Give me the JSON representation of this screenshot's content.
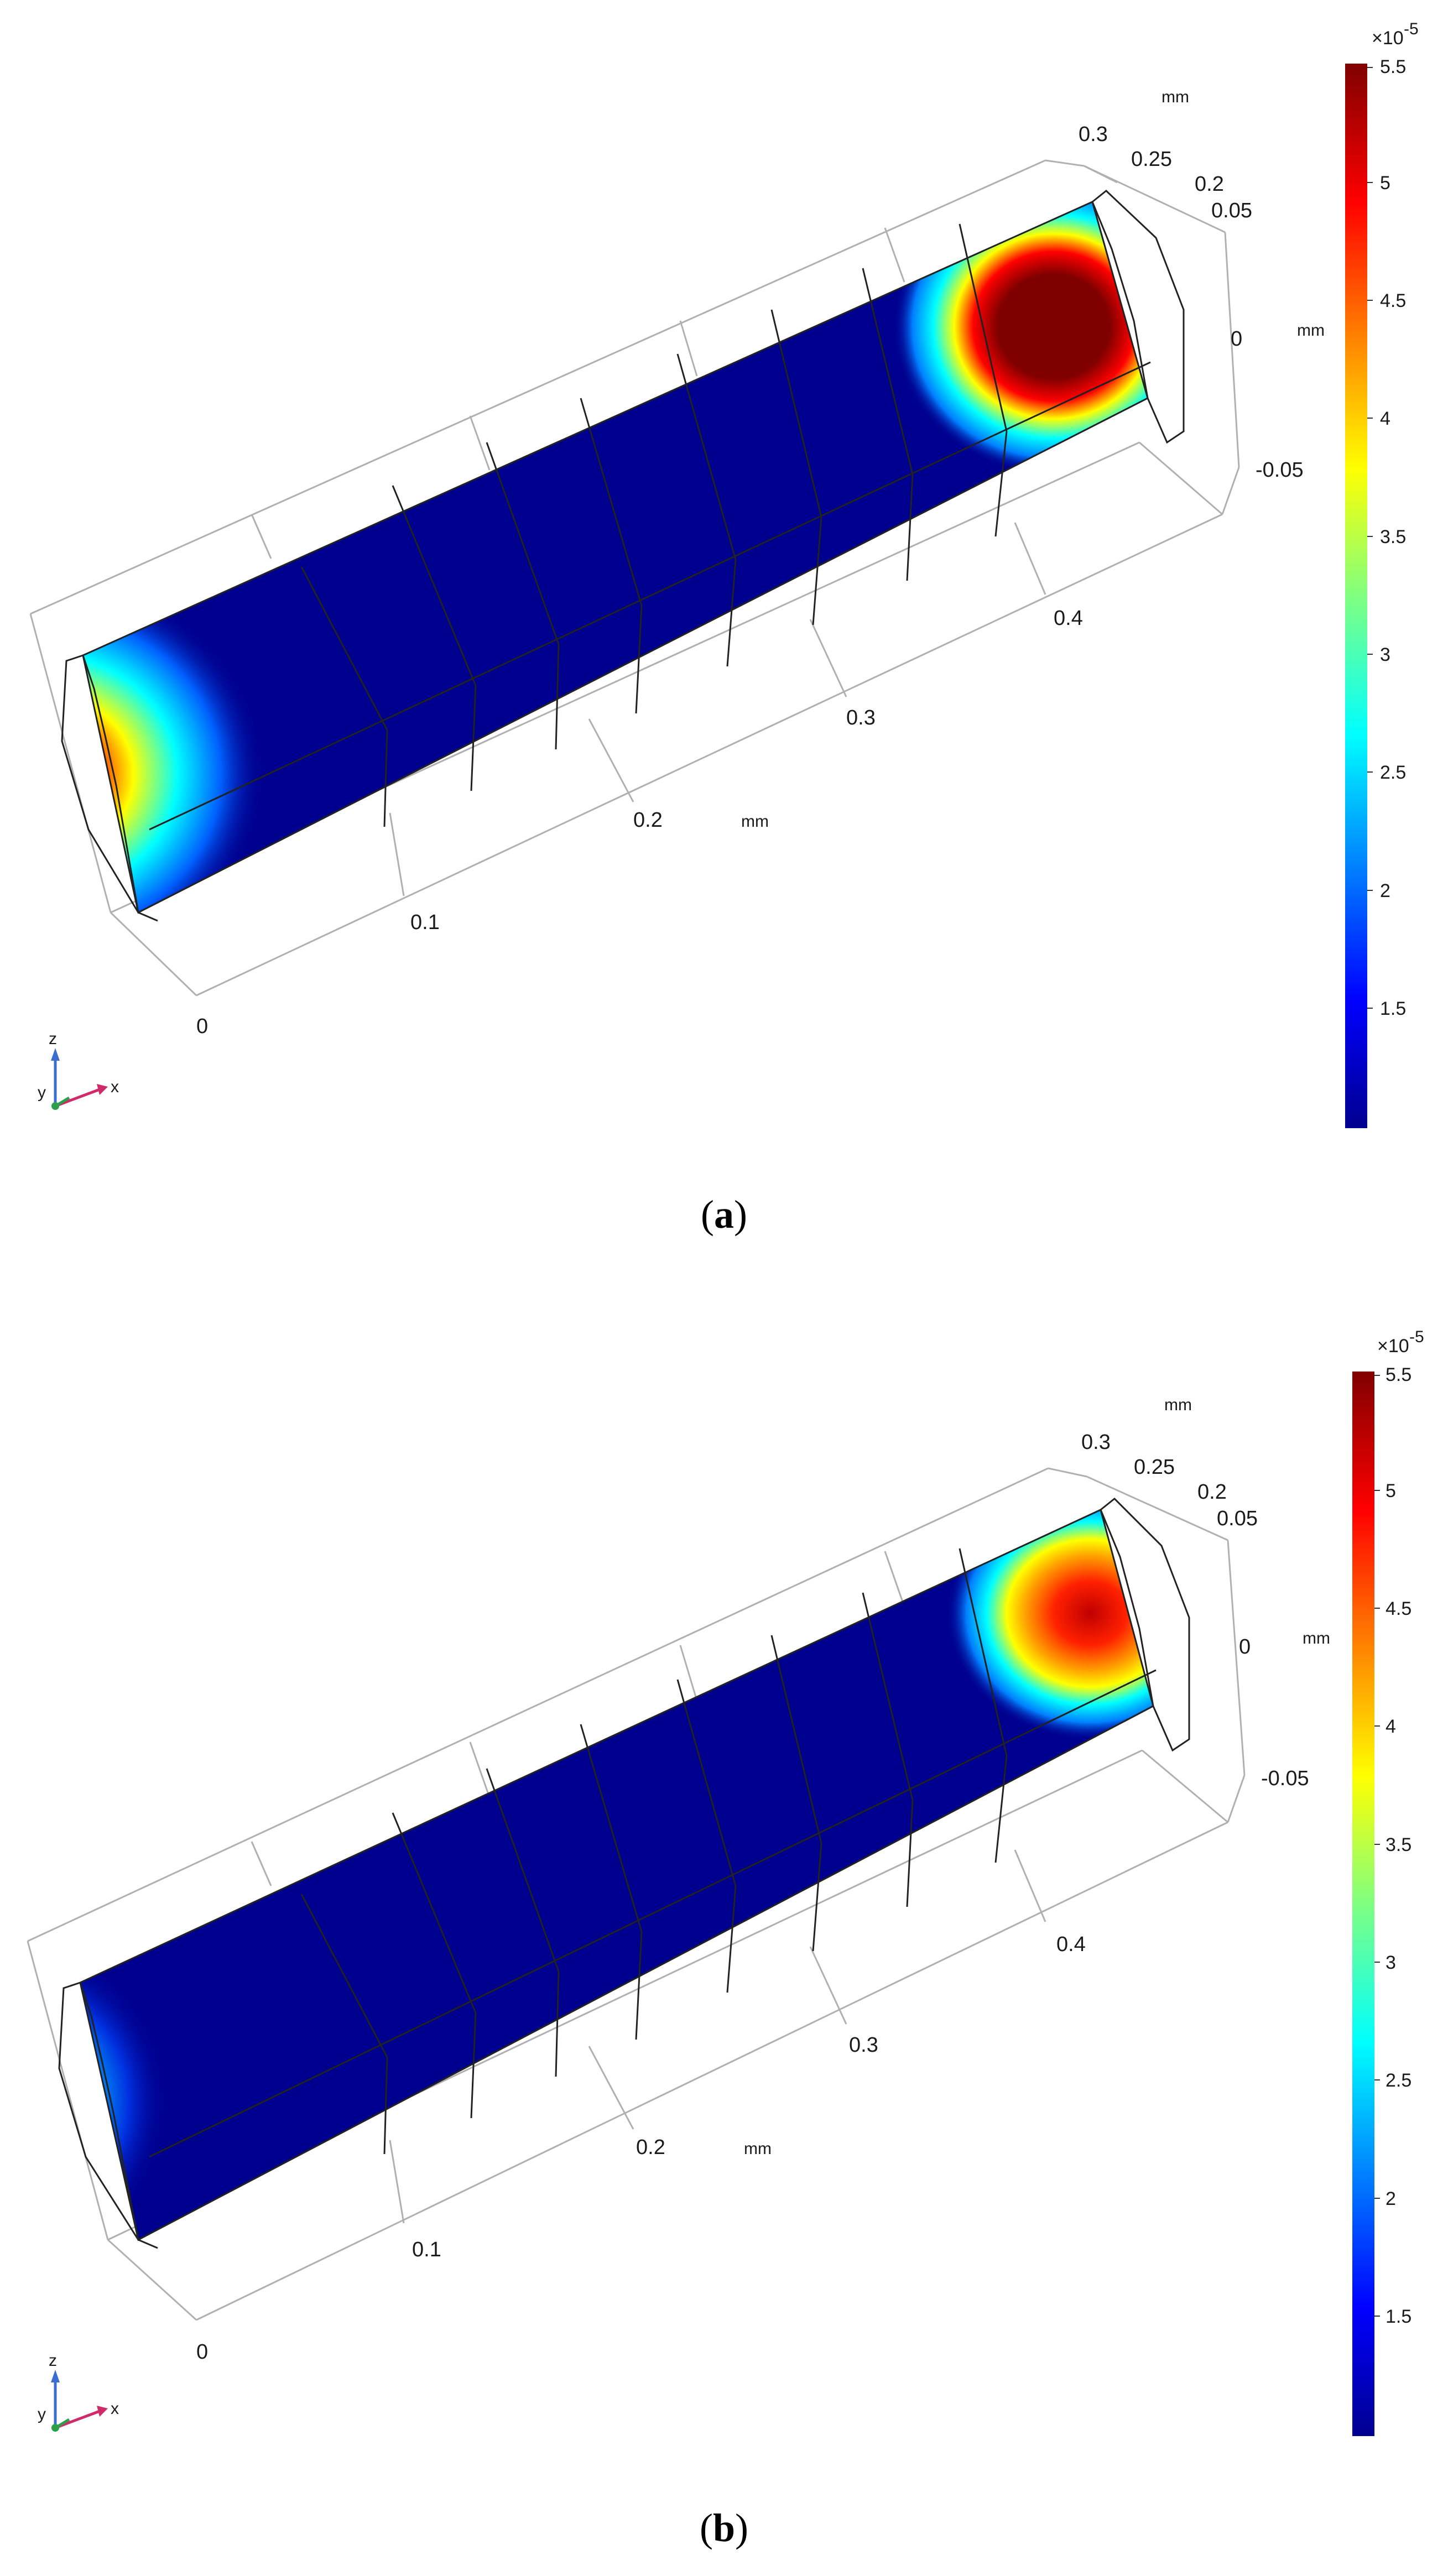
{
  "figures": [
    {
      "id": "a",
      "caption_label": "a",
      "x_ticks": [
        "0",
        "0.1",
        "0.2",
        "0.3",
        "0.4"
      ],
      "y_ticks": [
        "0.3",
        "0.25",
        "0.2"
      ],
      "z_ticks": [
        "0.05",
        "0",
        "-0.05"
      ],
      "unit_label": "mm",
      "colorbar": {
        "exponent_label": "×10",
        "exponent_power": "-5",
        "ticks": [
          "5.5",
          "5",
          "4.5",
          "4",
          "3.5",
          "3",
          "2.5",
          "2",
          "1.5"
        ]
      },
      "axis_triad": {
        "z": "z",
        "y": "y",
        "x": "x"
      }
    },
    {
      "id": "b",
      "caption_label": "b",
      "x_ticks": [
        "0",
        "0.1",
        "0.2",
        "0.3",
        "0.4"
      ],
      "y_ticks": [
        "0.3",
        "0.25",
        "0.2"
      ],
      "z_ticks": [
        "0.05",
        "0",
        "-0.05"
      ],
      "unit_label": "mm",
      "colorbar": {
        "exponent_label": "×10",
        "exponent_power": "-5",
        "ticks": [
          "5.5",
          "5",
          "4.5",
          "4",
          "3.5",
          "3",
          "2.5",
          "2",
          "1.5"
        ]
      },
      "axis_triad": {
        "z": "z",
        "y": "y",
        "x": "x"
      }
    }
  ],
  "colors": {
    "field_low": "#00008f",
    "field_high": "#800000",
    "frame": "#b0b0b0",
    "edge": "#222222"
  }
}
